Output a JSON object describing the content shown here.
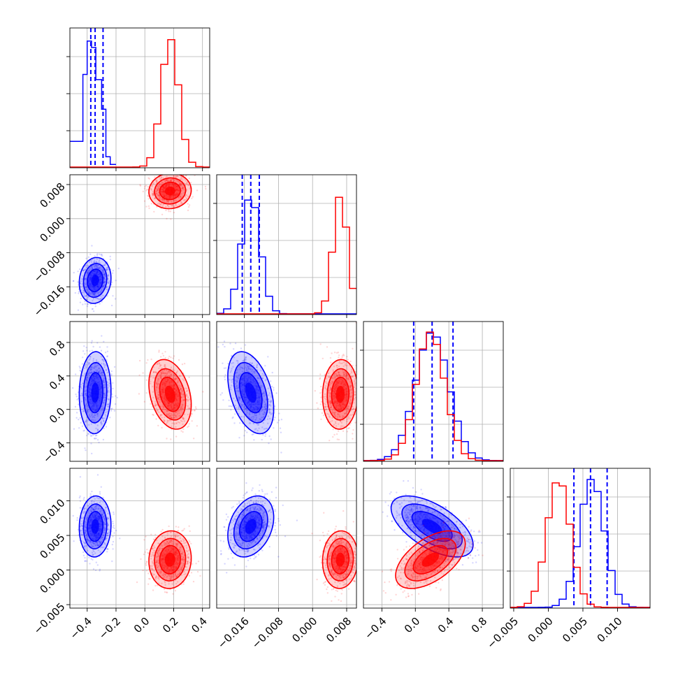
{
  "colors": {
    "series_a": "#0000ff",
    "series_b": "#ff0000",
    "grid": "#b0b0b0"
  },
  "chart_data": {
    "type": "corner",
    "grid": true,
    "parameters": [
      {
        "range": [
          -0.52,
          0.45
        ],
        "ticks": [
          -0.4,
          -0.2,
          0.0,
          0.2,
          0.4
        ],
        "tick_labels": [
          "−0.4",
          "−0.2",
          "0.0",
          "0.2",
          "0.4"
        ]
      },
      {
        "range": [
          -0.0225,
          0.0103
        ],
        "ticks": [
          -0.016,
          -0.008,
          0.0,
          0.008
        ],
        "tick_labels": [
          "−0.016",
          "−0.008",
          "0.000",
          "0.008"
        ]
      },
      {
        "range": [
          -0.62,
          1.05
        ],
        "ticks": [
          -0.4,
          0.0,
          0.4,
          0.8
        ],
        "tick_labels": [
          "−0.4",
          "0.0",
          "0.4",
          "0.8"
        ]
      },
      {
        "range": [
          -0.0055,
          0.0147
        ],
        "ticks": [
          -0.005,
          0.0,
          0.005,
          0.01
        ],
        "tick_labels": [
          "−0.005",
          "0.000",
          "0.005",
          "0.010"
        ]
      }
    ],
    "series": [
      {
        "color": "#0000ff",
        "mean": [
          -0.345,
          -0.0145,
          0.2,
          0.0063
        ],
        "std": [
          0.045,
          0.0022,
          0.2,
          0.0018
        ],
        "correlation": [
          [
            1,
            0.1,
            0.05,
            0.05
          ],
          [
            0.1,
            1,
            -0.4,
            0.3
          ],
          [
            0.05,
            -0.4,
            1,
            -0.6
          ],
          [
            0.05,
            0.3,
            -0.6,
            1
          ]
        ],
        "quantiles": [
          [
            -0.375,
            -0.345,
            -0.29
          ],
          [
            -0.0165,
            -0.0145,
            -0.0125
          ],
          [
            -0.02,
            0.2,
            0.45
          ],
          [
            0.0037,
            0.0061,
            0.0085
          ]
        ],
        "hist_bins": [
          [
            -0.52,
            -0.46,
            0.2
          ],
          [
            -0.46,
            -0.43,
            0.2
          ],
          [
            -0.43,
            -0.4,
            0.72
          ],
          [
            -0.4,
            -0.37,
            0.98
          ],
          [
            -0.37,
            -0.34,
            0.93
          ],
          [
            -0.34,
            -0.3,
            0.68
          ],
          [
            -0.3,
            -0.27,
            0.45
          ],
          [
            -0.27,
            -0.24,
            0.08
          ],
          [
            -0.24,
            -0.2,
            0.02
          ]
        ]
      },
      {
        "color": "#ff0000",
        "mean": [
          0.175,
          0.0065,
          0.18,
          0.0015
        ],
        "std": [
          0.06,
          0.0017,
          0.17,
          0.0017
        ],
        "correlation": [
          [
            1,
            0.05,
            -0.3,
            0.05
          ],
          [
            0.05,
            1,
            0.05,
            0.05
          ],
          [
            -0.3,
            0.05,
            1,
            0.55
          ],
          [
            0.05,
            0.05,
            0.55,
            1
          ]
        ],
        "quantiles": null
      }
    ]
  }
}
